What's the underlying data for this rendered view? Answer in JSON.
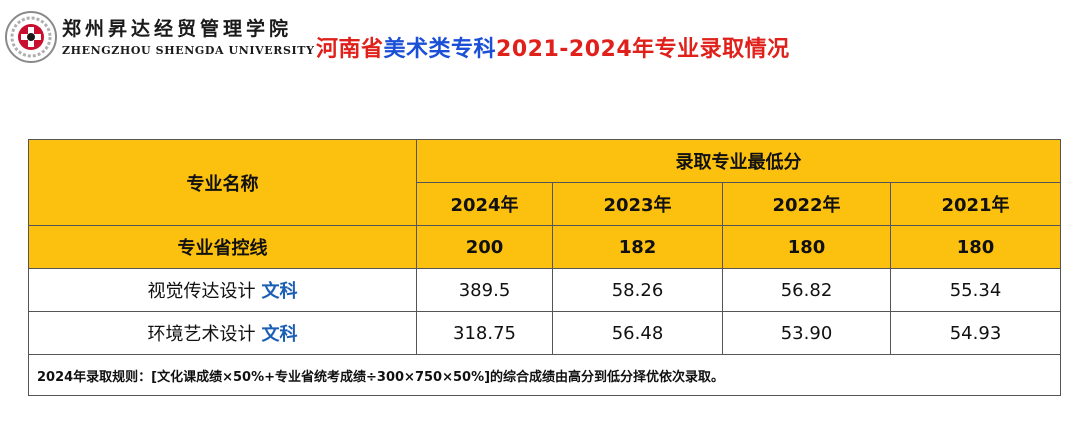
{
  "header": {
    "logo_cn": "郑州昇达经贸管理学院",
    "logo_en": "ZHENGZHOU SHENGDA UNIVERSITY",
    "title_parts": {
      "province": "河南省",
      "category": "美术类专科",
      "rest": "2021-2024年专业录取情况"
    },
    "colors": {
      "red": "#e0201a",
      "blue": "#1a4fd6"
    }
  },
  "table": {
    "header_major": "专业名称",
    "header_min_score": "录取专业最低分",
    "years": [
      "2024年",
      "2023年",
      "2022年",
      "2021年"
    ],
    "control_label": "专业省控线",
    "control_lines": [
      "200",
      "182",
      "180",
      "180"
    ],
    "rows": [
      {
        "name": "视觉传达设计",
        "category": "文科",
        "scores": [
          "389.5",
          "58.26",
          "56.82",
          "55.34"
        ]
      },
      {
        "name": "环境艺术设计",
        "category": "文科",
        "scores": [
          "318.75",
          "56.48",
          "53.90",
          "54.93"
        ]
      }
    ],
    "note": "2024年录取规则：[文化课成绩×50%+专业省统考成绩÷300×750×50%]的综合成绩由高分到低分择优依次录取。",
    "colors": {
      "header_fill": "#fcc10f",
      "category_text": "#1a5fb4"
    }
  }
}
